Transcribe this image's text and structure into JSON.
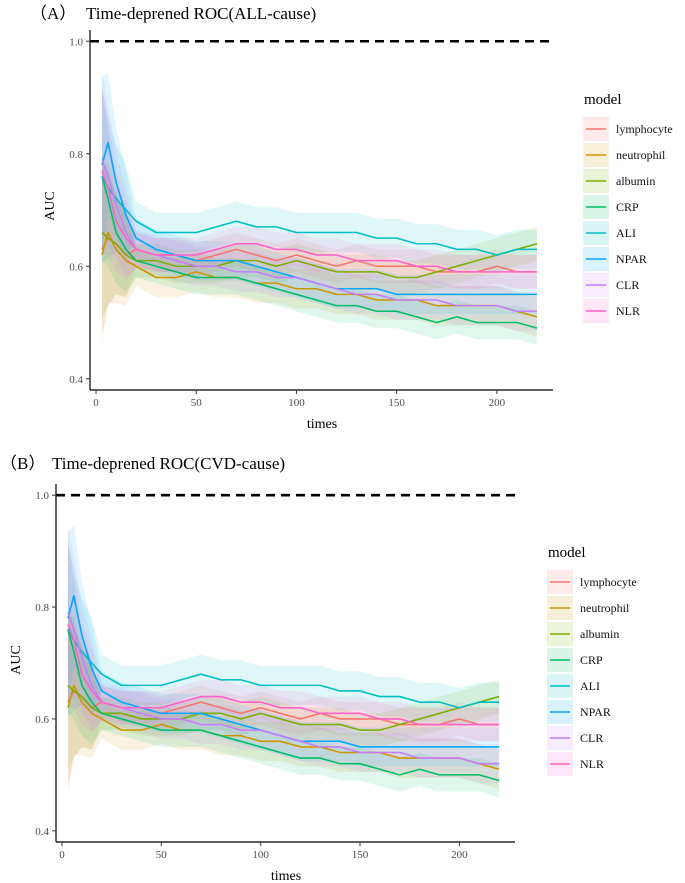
{
  "chart_data": [
    {
      "type": "line",
      "panel_label": "（A）",
      "title": "Time-deprened ROC(ALL-cause)",
      "xlabel": "times",
      "ylabel": "AUC",
      "xlim": [
        -3,
        228
      ],
      "ylim": [
        0.38,
        1.02
      ],
      "xticks": [
        0,
        50,
        100,
        150,
        200
      ],
      "yticks": [
        0.4,
        0.6,
        0.8,
        1.0
      ],
      "ytick_labels": [
        "0.4",
        "0.6",
        "0.8",
        "1.0"
      ],
      "reference_line": 1.0,
      "legend_title": "model",
      "legend_position": "right",
      "series": [
        {
          "name": "lymphocyte",
          "color": "#F8766D",
          "band": 0.03,
          "x": [
            3,
            6,
            10,
            15,
            20,
            30,
            40,
            50,
            60,
            70,
            80,
            90,
            100,
            110,
            120,
            130,
            140,
            150,
            160,
            170,
            180,
            190,
            200,
            210,
            220
          ],
          "values": [
            0.63,
            0.65,
            0.64,
            0.62,
            0.63,
            0.62,
            0.62,
            0.61,
            0.62,
            0.63,
            0.62,
            0.61,
            0.62,
            0.61,
            0.6,
            0.61,
            0.6,
            0.6,
            0.6,
            0.59,
            0.59,
            0.59,
            0.6,
            0.59,
            0.59
          ]
        },
        {
          "name": "neutrophil",
          "color": "#CD9600",
          "band": 0.035,
          "x": [
            3,
            6,
            10,
            15,
            20,
            30,
            40,
            50,
            60,
            70,
            80,
            90,
            100,
            110,
            120,
            130,
            140,
            150,
            160,
            170,
            180,
            190,
            200,
            210,
            220
          ],
          "values": [
            0.62,
            0.66,
            0.63,
            0.61,
            0.6,
            0.58,
            0.58,
            0.59,
            0.58,
            0.58,
            0.57,
            0.57,
            0.56,
            0.56,
            0.55,
            0.55,
            0.54,
            0.54,
            0.54,
            0.53,
            0.53,
            0.53,
            0.53,
            0.52,
            0.51
          ]
        },
        {
          "name": "albumin",
          "color": "#7CAE00",
          "band": 0.03,
          "x": [
            3,
            6,
            10,
            15,
            20,
            30,
            40,
            50,
            60,
            70,
            80,
            90,
            100,
            110,
            120,
            130,
            140,
            150,
            160,
            170,
            180,
            190,
            200,
            210,
            220
          ],
          "values": [
            0.66,
            0.65,
            0.64,
            0.62,
            0.61,
            0.61,
            0.6,
            0.6,
            0.6,
            0.61,
            0.61,
            0.6,
            0.61,
            0.6,
            0.59,
            0.59,
            0.59,
            0.58,
            0.58,
            0.59,
            0.6,
            0.61,
            0.62,
            0.63,
            0.64
          ]
        },
        {
          "name": "CRP",
          "color": "#00BE67",
          "band": 0.03,
          "x": [
            3,
            6,
            10,
            15,
            20,
            30,
            40,
            50,
            60,
            70,
            80,
            90,
            100,
            110,
            120,
            130,
            140,
            150,
            160,
            170,
            180,
            190,
            200,
            210,
            220
          ],
          "values": [
            0.76,
            0.72,
            0.66,
            0.63,
            0.61,
            0.6,
            0.59,
            0.58,
            0.58,
            0.58,
            0.57,
            0.56,
            0.55,
            0.54,
            0.53,
            0.53,
            0.52,
            0.52,
            0.51,
            0.5,
            0.51,
            0.5,
            0.5,
            0.5,
            0.49
          ]
        },
        {
          "name": "ALI",
          "color": "#00BFC4",
          "band": 0.035,
          "x": [
            3,
            6,
            10,
            15,
            20,
            30,
            40,
            50,
            60,
            70,
            80,
            90,
            100,
            110,
            120,
            130,
            140,
            150,
            160,
            170,
            180,
            190,
            200,
            210,
            220
          ],
          "values": [
            0.76,
            0.74,
            0.72,
            0.7,
            0.68,
            0.66,
            0.66,
            0.66,
            0.67,
            0.68,
            0.67,
            0.67,
            0.66,
            0.66,
            0.66,
            0.66,
            0.65,
            0.65,
            0.64,
            0.64,
            0.63,
            0.63,
            0.62,
            0.63,
            0.63
          ]
        },
        {
          "name": "NPAR",
          "color": "#00A9FF",
          "band": 0.035,
          "x": [
            3,
            6,
            10,
            15,
            20,
            30,
            40,
            50,
            60,
            70,
            80,
            90,
            100,
            110,
            120,
            130,
            140,
            150,
            160,
            170,
            180,
            190,
            200,
            210,
            220
          ],
          "values": [
            0.78,
            0.82,
            0.75,
            0.69,
            0.65,
            0.63,
            0.62,
            0.61,
            0.61,
            0.61,
            0.6,
            0.59,
            0.58,
            0.57,
            0.56,
            0.56,
            0.56,
            0.55,
            0.55,
            0.55,
            0.55,
            0.55,
            0.55,
            0.55,
            0.55
          ]
        },
        {
          "name": "CLR",
          "color": "#C77CFF",
          "band": 0.035,
          "x": [
            3,
            6,
            10,
            15,
            20,
            30,
            40,
            50,
            60,
            70,
            80,
            90,
            100,
            110,
            120,
            130,
            140,
            150,
            160,
            170,
            180,
            190,
            200,
            210,
            220
          ],
          "values": [
            0.79,
            0.76,
            0.71,
            0.66,
            0.63,
            0.62,
            0.61,
            0.6,
            0.6,
            0.59,
            0.59,
            0.58,
            0.58,
            0.57,
            0.56,
            0.55,
            0.55,
            0.54,
            0.54,
            0.54,
            0.53,
            0.53,
            0.53,
            0.52,
            0.52
          ]
        },
        {
          "name": "NLR",
          "color": "#FF61CC",
          "band": 0.03,
          "x": [
            3,
            6,
            10,
            15,
            20,
            30,
            40,
            50,
            60,
            70,
            80,
            90,
            100,
            110,
            120,
            130,
            140,
            150,
            160,
            170,
            180,
            190,
            200,
            210,
            220
          ],
          "values": [
            0.77,
            0.74,
            0.68,
            0.65,
            0.63,
            0.62,
            0.62,
            0.62,
            0.63,
            0.64,
            0.64,
            0.63,
            0.63,
            0.62,
            0.62,
            0.61,
            0.61,
            0.61,
            0.6,
            0.6,
            0.59,
            0.59,
            0.59,
            0.59,
            0.59
          ]
        }
      ]
    },
    {
      "type": "line",
      "panel_label": "（B）",
      "title": "Time-deprened ROC(CVD-cause)",
      "xlabel": "times",
      "ylabel": "AUC",
      "xlim": [
        -3,
        228
      ],
      "ylim": [
        0.38,
        1.02
      ],
      "xticks": [
        0,
        50,
        100,
        150,
        200
      ],
      "yticks": [
        0.4,
        0.6,
        0.8,
        1.0
      ],
      "ytick_labels": [
        "0.4",
        "0.6",
        "0.8",
        "1.0"
      ],
      "reference_line": 1.0,
      "legend_title": "model",
      "legend_position": "right",
      "series": [
        {
          "name": "lymphocyte",
          "color": "#F8766D",
          "band": 0.03,
          "x": [
            3,
            6,
            10,
            15,
            20,
            30,
            40,
            50,
            60,
            70,
            80,
            90,
            100,
            110,
            120,
            130,
            140,
            150,
            160,
            170,
            180,
            190,
            200,
            210,
            220
          ],
          "values": [
            0.63,
            0.65,
            0.64,
            0.62,
            0.63,
            0.62,
            0.62,
            0.61,
            0.62,
            0.63,
            0.62,
            0.61,
            0.62,
            0.61,
            0.6,
            0.61,
            0.6,
            0.6,
            0.6,
            0.59,
            0.59,
            0.59,
            0.6,
            0.59,
            0.59
          ]
        },
        {
          "name": "neutrophil",
          "color": "#CD9600",
          "band": 0.035,
          "x": [
            3,
            6,
            10,
            15,
            20,
            30,
            40,
            50,
            60,
            70,
            80,
            90,
            100,
            110,
            120,
            130,
            140,
            150,
            160,
            170,
            180,
            190,
            200,
            210,
            220
          ],
          "values": [
            0.62,
            0.66,
            0.63,
            0.61,
            0.6,
            0.58,
            0.58,
            0.59,
            0.58,
            0.58,
            0.57,
            0.57,
            0.56,
            0.56,
            0.55,
            0.55,
            0.54,
            0.54,
            0.54,
            0.53,
            0.53,
            0.53,
            0.53,
            0.52,
            0.51
          ]
        },
        {
          "name": "albumin",
          "color": "#7CAE00",
          "band": 0.03,
          "x": [
            3,
            6,
            10,
            15,
            20,
            30,
            40,
            50,
            60,
            70,
            80,
            90,
            100,
            110,
            120,
            130,
            140,
            150,
            160,
            170,
            180,
            190,
            200,
            210,
            220
          ],
          "values": [
            0.66,
            0.65,
            0.64,
            0.62,
            0.61,
            0.61,
            0.6,
            0.6,
            0.6,
            0.61,
            0.61,
            0.6,
            0.61,
            0.6,
            0.59,
            0.59,
            0.59,
            0.58,
            0.58,
            0.59,
            0.6,
            0.61,
            0.62,
            0.63,
            0.64
          ]
        },
        {
          "name": "CRP",
          "color": "#00BE67",
          "band": 0.03,
          "x": [
            3,
            6,
            10,
            15,
            20,
            30,
            40,
            50,
            60,
            70,
            80,
            90,
            100,
            110,
            120,
            130,
            140,
            150,
            160,
            170,
            180,
            190,
            200,
            210,
            220
          ],
          "values": [
            0.76,
            0.72,
            0.66,
            0.63,
            0.61,
            0.6,
            0.59,
            0.58,
            0.58,
            0.58,
            0.57,
            0.56,
            0.55,
            0.54,
            0.53,
            0.53,
            0.52,
            0.52,
            0.51,
            0.5,
            0.51,
            0.5,
            0.5,
            0.5,
            0.49
          ]
        },
        {
          "name": "ALI",
          "color": "#00BFC4",
          "band": 0.035,
          "x": [
            3,
            6,
            10,
            15,
            20,
            30,
            40,
            50,
            60,
            70,
            80,
            90,
            100,
            110,
            120,
            130,
            140,
            150,
            160,
            170,
            180,
            190,
            200,
            210,
            220
          ],
          "values": [
            0.76,
            0.74,
            0.72,
            0.7,
            0.68,
            0.66,
            0.66,
            0.66,
            0.67,
            0.68,
            0.67,
            0.67,
            0.66,
            0.66,
            0.66,
            0.66,
            0.65,
            0.65,
            0.64,
            0.64,
            0.63,
            0.63,
            0.62,
            0.63,
            0.63
          ]
        },
        {
          "name": "NPAR",
          "color": "#00A9FF",
          "band": 0.035,
          "x": [
            3,
            6,
            10,
            15,
            20,
            30,
            40,
            50,
            60,
            70,
            80,
            90,
            100,
            110,
            120,
            130,
            140,
            150,
            160,
            170,
            180,
            190,
            200,
            210,
            220
          ],
          "values": [
            0.78,
            0.82,
            0.75,
            0.69,
            0.65,
            0.63,
            0.62,
            0.61,
            0.61,
            0.61,
            0.6,
            0.59,
            0.58,
            0.57,
            0.56,
            0.56,
            0.56,
            0.55,
            0.55,
            0.55,
            0.55,
            0.55,
            0.55,
            0.55,
            0.55
          ]
        },
        {
          "name": "CLR",
          "color": "#C77CFF",
          "band": 0.035,
          "x": [
            3,
            6,
            10,
            15,
            20,
            30,
            40,
            50,
            60,
            70,
            80,
            90,
            100,
            110,
            120,
            130,
            140,
            150,
            160,
            170,
            180,
            190,
            200,
            210,
            220
          ],
          "values": [
            0.79,
            0.76,
            0.71,
            0.66,
            0.63,
            0.62,
            0.61,
            0.6,
            0.6,
            0.59,
            0.59,
            0.58,
            0.58,
            0.57,
            0.56,
            0.55,
            0.55,
            0.54,
            0.54,
            0.54,
            0.53,
            0.53,
            0.53,
            0.52,
            0.52
          ]
        },
        {
          "name": "NLR",
          "color": "#FF61CC",
          "band": 0.03,
          "x": [
            3,
            6,
            10,
            15,
            20,
            30,
            40,
            50,
            60,
            70,
            80,
            90,
            100,
            110,
            120,
            130,
            140,
            150,
            160,
            170,
            180,
            190,
            200,
            210,
            220
          ],
          "values": [
            0.77,
            0.74,
            0.68,
            0.65,
            0.63,
            0.62,
            0.62,
            0.62,
            0.63,
            0.64,
            0.64,
            0.63,
            0.63,
            0.62,
            0.62,
            0.61,
            0.61,
            0.61,
            0.6,
            0.6,
            0.59,
            0.59,
            0.59,
            0.59,
            0.59
          ]
        }
      ]
    }
  ]
}
